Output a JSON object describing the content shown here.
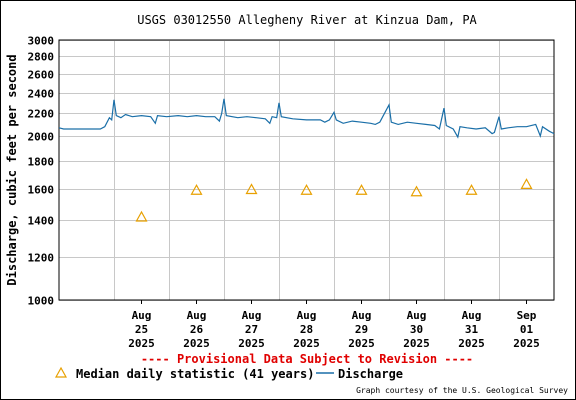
{
  "chart_data": {
    "type": "line",
    "title": "USGS 03012550 Allegheny River at Kinzua Dam, PA",
    "ylabel": "Discharge, cubic feet per second",
    "ylim": [
      1000,
      3000
    ],
    "yscale": "log",
    "yticks": [
      1000,
      1200,
      1400,
      1600,
      1800,
      2000,
      2200,
      2400,
      2600,
      2800,
      3000
    ],
    "xlim": [
      "2025-08-24",
      "2025-09-01"
    ],
    "xticks": [
      {
        "date": "2025-08-25",
        "label": [
          "Aug",
          "25",
          "2025"
        ]
      },
      {
        "date": "2025-08-26",
        "label": [
          "Aug",
          "26",
          "2025"
        ]
      },
      {
        "date": "2025-08-27",
        "label": [
          "Aug",
          "27",
          "2025"
        ]
      },
      {
        "date": "2025-08-28",
        "label": [
          "Aug",
          "28",
          "2025"
        ]
      },
      {
        "date": "2025-08-29",
        "label": [
          "Aug",
          "29",
          "2025"
        ]
      },
      {
        "date": "2025-08-30",
        "label": [
          "Aug",
          "30",
          "2025"
        ]
      },
      {
        "date": "2025-08-31",
        "label": [
          "Aug",
          "31",
          "2025"
        ]
      },
      {
        "date": "2025-09-01",
        "label": [
          "Sep",
          "01",
          "2025"
        ]
      }
    ],
    "grid": true,
    "provisional_note": "---- Provisional Data Subject to Revision ----",
    "credit": "Graph courtesy of the U.S. Geological Survey",
    "series": [
      {
        "name": "Median daily statistic (41 years)",
        "marker": "triangle",
        "color": "#e8a000",
        "points": [
          {
            "date": "2025-08-25",
            "value": 1420
          },
          {
            "date": "2025-08-26",
            "value": 1590
          },
          {
            "date": "2025-08-27",
            "value": 1595
          },
          {
            "date": "2025-08-28",
            "value": 1590
          },
          {
            "date": "2025-08-29",
            "value": 1590
          },
          {
            "date": "2025-08-30",
            "value": 1580
          },
          {
            "date": "2025-08-31",
            "value": 1590
          },
          {
            "date": "2025-09-01",
            "value": 1630
          }
        ]
      },
      {
        "name": "Discharge",
        "marker": "line",
        "color": "#1a6fa8",
        "points": [
          {
            "date": "2025-08-24T00:00",
            "value": 2070
          },
          {
            "date": "2025-08-24T02:00",
            "value": 2060
          },
          {
            "date": "2025-08-24T06:00",
            "value": 2060
          },
          {
            "date": "2025-08-24T12:00",
            "value": 2060
          },
          {
            "date": "2025-08-24T18:00",
            "value": 2060
          },
          {
            "date": "2025-08-24T20:00",
            "value": 2080
          },
          {
            "date": "2025-08-24T22:00",
            "value": 2160
          },
          {
            "date": "2025-08-24T23:00",
            "value": 2140
          },
          {
            "date": "2025-08-25T00:00",
            "value": 2330
          },
          {
            "date": "2025-08-25T01:00",
            "value": 2180
          },
          {
            "date": "2025-08-25T03:00",
            "value": 2160
          },
          {
            "date": "2025-08-25T05:00",
            "value": 2190
          },
          {
            "date": "2025-08-25T08:00",
            "value": 2170
          },
          {
            "date": "2025-08-25T12:00",
            "value": 2180
          },
          {
            "date": "2025-08-25T16:00",
            "value": 2170
          },
          {
            "date": "2025-08-25T18:00",
            "value": 2110
          },
          {
            "date": "2025-08-25T19:00",
            "value": 2180
          },
          {
            "date": "2025-08-25T23:00",
            "value": 2170
          },
          {
            "date": "2025-08-26T04:00",
            "value": 2180
          },
          {
            "date": "2025-08-26T08:00",
            "value": 2170
          },
          {
            "date": "2025-08-26T12:00",
            "value": 2180
          },
          {
            "date": "2025-08-26T16:00",
            "value": 2170
          },
          {
            "date": "2025-08-26T20:00",
            "value": 2170
          },
          {
            "date": "2025-08-26T22:00",
            "value": 2130
          },
          {
            "date": "2025-08-26T23:00",
            "value": 2200
          },
          {
            "date": "2025-08-27T00:00",
            "value": 2340
          },
          {
            "date": "2025-08-27T01:00",
            "value": 2180
          },
          {
            "date": "2025-08-27T06:00",
            "value": 2160
          },
          {
            "date": "2025-08-27T10:00",
            "value": 2170
          },
          {
            "date": "2025-08-27T14:00",
            "value": 2160
          },
          {
            "date": "2025-08-27T18:00",
            "value": 2150
          },
          {
            "date": "2025-08-27T20:00",
            "value": 2110
          },
          {
            "date": "2025-08-27T21:00",
            "value": 2170
          },
          {
            "date": "2025-08-27T23:00",
            "value": 2160
          },
          {
            "date": "2025-08-28T00:00",
            "value": 2300
          },
          {
            "date": "2025-08-28T01:00",
            "value": 2170
          },
          {
            "date": "2025-08-28T06:00",
            "value": 2150
          },
          {
            "date": "2025-08-28T12:00",
            "value": 2140
          },
          {
            "date": "2025-08-28T18:00",
            "value": 2140
          },
          {
            "date": "2025-08-28T20:00",
            "value": 2120
          },
          {
            "date": "2025-08-28T22:00",
            "value": 2140
          },
          {
            "date": "2025-08-29T00:00",
            "value": 2210
          },
          {
            "date": "2025-08-29T01:00",
            "value": 2140
          },
          {
            "date": "2025-08-29T04:00",
            "value": 2110
          },
          {
            "date": "2025-08-29T08:00",
            "value": 2130
          },
          {
            "date": "2025-08-29T12:00",
            "value": 2120
          },
          {
            "date": "2025-08-29T16:00",
            "value": 2110
          },
          {
            "date": "2025-08-29T18:00",
            "value": 2100
          },
          {
            "date": "2025-08-29T20:00",
            "value": 2120
          },
          {
            "date": "2025-08-30T00:00",
            "value": 2280
          },
          {
            "date": "2025-08-30T01:00",
            "value": 2120
          },
          {
            "date": "2025-08-30T04:00",
            "value": 2100
          },
          {
            "date": "2025-08-30T08:00",
            "value": 2120
          },
          {
            "date": "2025-08-30T12:00",
            "value": 2110
          },
          {
            "date": "2025-08-30T16:00",
            "value": 2100
          },
          {
            "date": "2025-08-30T20:00",
            "value": 2090
          },
          {
            "date": "2025-08-30T22:00",
            "value": 2060
          },
          {
            "date": "2025-08-31T00:00",
            "value": 2250
          },
          {
            "date": "2025-08-31T01:00",
            "value": 2090
          },
          {
            "date": "2025-08-31T04:00",
            "value": 2060
          },
          {
            "date": "2025-08-31T06:00",
            "value": 1990
          },
          {
            "date": "2025-08-31T07:00",
            "value": 2080
          },
          {
            "date": "2025-08-31T10:00",
            "value": 2070
          },
          {
            "date": "2025-08-31T14:00",
            "value": 2060
          },
          {
            "date": "2025-08-31T18:00",
            "value": 2070
          },
          {
            "date": "2025-08-31T21:00",
            "value": 2020
          },
          {
            "date": "2025-08-31T22:00",
            "value": 2030
          },
          {
            "date": "2025-09-01T00:00",
            "value": 2170
          },
          {
            "date": "2025-09-01T01:00",
            "value": 2060
          },
          {
            "date": "2025-09-01T04:00",
            "value": 2070
          },
          {
            "date": "2025-09-01T08:00",
            "value": 2080
          },
          {
            "date": "2025-09-01T12:00",
            "value": 2080
          },
          {
            "date": "2025-09-01T16:00",
            "value": 2100
          },
          {
            "date": "2025-09-01T18:00",
            "value": 2000
          },
          {
            "date": "2025-09-01T19:00",
            "value": 2080
          },
          {
            "date": "2025-09-01T22:00",
            "value": 2040
          },
          {
            "date": "2025-09-02T00:00",
            "value": 2020
          }
        ]
      }
    ]
  }
}
